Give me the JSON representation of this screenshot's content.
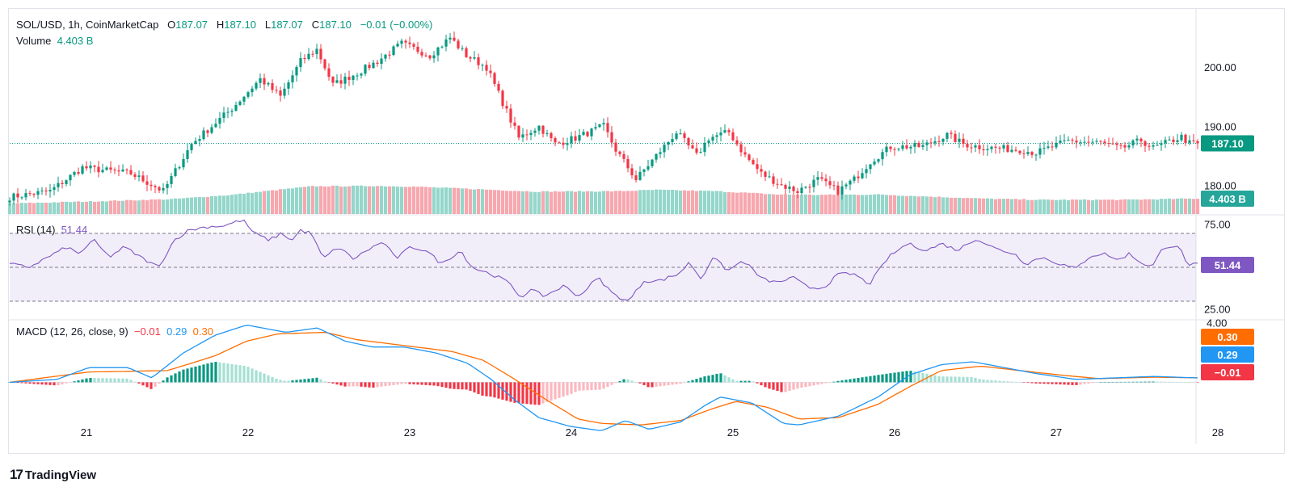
{
  "header": {
    "symbol": "SOL/USD, 1h, CoinMarketCap",
    "o_label": "O",
    "o": "187.07",
    "h_label": "H",
    "h": "187.10",
    "l_label": "L",
    "l": "187.07",
    "c_label": "C",
    "c": "187.10",
    "change": "−0.01 (−0.00%)",
    "volume_label": "Volume",
    "volume": "4.403 B"
  },
  "rsi_legend": {
    "label": "RSI (14)",
    "value": "51.44"
  },
  "macd_legend": {
    "label": "MACD (12, 26, close, 9)",
    "hist": "−0.01",
    "macd": "0.29",
    "signal": "0.30"
  },
  "badges": {
    "price": "187.10",
    "volume": "4.403 B",
    "rsi": "51.44",
    "signal": "0.30",
    "macd": "0.29",
    "hist": "−0.01"
  },
  "brand": "TradingView",
  "colors": {
    "up": "#089981",
    "down": "#f23645",
    "up_vol": "#94d6ca",
    "down_vol": "#f7a7ae",
    "rsi": "#7e57c2",
    "macd": "#2196f3",
    "signal": "#ff6d00"
  },
  "chart_data": {
    "type": "candlestick",
    "price_axis": {
      "ticks": [
        "200.00",
        "190.00",
        "180.00"
      ],
      "values": [
        200,
        190,
        180
      ],
      "range": [
        176.5,
        208.5
      ]
    },
    "rsi_axis": {
      "ticks": [
        "75.00",
        "25.00"
      ],
      "values": [
        75,
        25
      ],
      "band": [
        30,
        70
      ],
      "mid": 50,
      "range": [
        20,
        80
      ]
    },
    "macd_axis": {
      "ticks": [
        "4.00"
      ],
      "values": [
        4
      ],
      "range": [
        -4.1,
        4.2
      ]
    },
    "x_ticks": [
      "21",
      "22",
      "23",
      "24",
      "25",
      "26",
      "27",
      "28"
    ],
    "x_tick_hours": [
      19,
      59,
      99,
      139,
      179,
      219,
      259,
      299
    ],
    "close_keyframes": [
      [
        0,
        178
      ],
      [
        10,
        179
      ],
      [
        18,
        183
      ],
      [
        30,
        182
      ],
      [
        38,
        179
      ],
      [
        45,
        187
      ],
      [
        55,
        193
      ],
      [
        62,
        198
      ],
      [
        67,
        195
      ],
      [
        72,
        201
      ],
      [
        76,
        203
      ],
      [
        80,
        197
      ],
      [
        86,
        199
      ],
      [
        91,
        201
      ],
      [
        97,
        204
      ],
      [
        104,
        202
      ],
      [
        109,
        205
      ],
      [
        113,
        202
      ],
      [
        118,
        200
      ],
      [
        122,
        194
      ],
      [
        126,
        188
      ],
      [
        131,
        190
      ],
      [
        135,
        187
      ],
      [
        140,
        188
      ],
      [
        147,
        190
      ],
      [
        150,
        186
      ],
      [
        155,
        181
      ],
      [
        160,
        185
      ],
      [
        165,
        189
      ],
      [
        170,
        185
      ],
      [
        173,
        188
      ],
      [
        178,
        189
      ],
      [
        182,
        185
      ],
      [
        186,
        182
      ],
      [
        191,
        180
      ],
      [
        195,
        179
      ],
      [
        200,
        181
      ],
      [
        205,
        179
      ],
      [
        209,
        181
      ],
      [
        213,
        184
      ],
      [
        218,
        186.5
      ],
      [
        226,
        186.6
      ],
      [
        232,
        188.5
      ],
      [
        236,
        187
      ],
      [
        240,
        186.5
      ],
      [
        250,
        186
      ],
      [
        254,
        185.5
      ],
      [
        262,
        187.5
      ],
      [
        270,
        187.2
      ],
      [
        275,
        186.2
      ],
      [
        280,
        187.6
      ],
      [
        283,
        186.3
      ],
      [
        287,
        187.4
      ],
      [
        290,
        188.2
      ],
      [
        292,
        187.1
      ],
      [
        294,
        187.1
      ]
    ],
    "volume_keyframes": [
      [
        0,
        3.2
      ],
      [
        20,
        3.8
      ],
      [
        40,
        4.5
      ],
      [
        55,
        5.8
      ],
      [
        64,
        7
      ],
      [
        75,
        8.4
      ],
      [
        90,
        8.5
      ],
      [
        100,
        8.3
      ],
      [
        110,
        7.8
      ],
      [
        120,
        7.3
      ],
      [
        130,
        6.8
      ],
      [
        150,
        6.9
      ],
      [
        160,
        7.3
      ],
      [
        175,
        6.9
      ],
      [
        190,
        5.9
      ],
      [
        200,
        5.8
      ],
      [
        215,
        5.9
      ],
      [
        225,
        5.4
      ],
      [
        240,
        4.7
      ],
      [
        255,
        4.3
      ],
      [
        275,
        4.3
      ],
      [
        294,
        4.7
      ]
    ],
    "volume_scale_max": 10,
    "rsi_keyframes": [
      [
        0,
        52
      ],
      [
        5,
        50
      ],
      [
        10,
        56
      ],
      [
        15,
        62
      ],
      [
        18,
        58
      ],
      [
        22,
        66
      ],
      [
        26,
        56
      ],
      [
        30,
        62
      ],
      [
        35,
        55
      ],
      [
        39,
        50
      ],
      [
        43,
        66
      ],
      [
        47,
        72
      ],
      [
        52,
        74
      ],
      [
        56,
        74.5
      ],
      [
        61,
        78
      ],
      [
        64,
        70
      ],
      [
        68,
        66
      ],
      [
        71,
        70
      ],
      [
        74,
        66
      ],
      [
        76,
        72
      ],
      [
        79,
        70
      ],
      [
        82,
        55
      ],
      [
        86,
        62
      ],
      [
        90,
        55
      ],
      [
        95,
        62
      ],
      [
        98,
        65
      ],
      [
        101,
        55
      ],
      [
        105,
        62
      ],
      [
        109,
        60
      ],
      [
        113,
        52
      ],
      [
        118,
        60
      ],
      [
        121,
        50
      ],
      [
        126,
        46
      ],
      [
        130,
        42
      ],
      [
        134,
        32
      ],
      [
        136,
        37
      ],
      [
        140,
        33
      ],
      [
        145,
        39
      ],
      [
        149,
        33
      ],
      [
        154,
        44
      ],
      [
        158,
        34
      ],
      [
        162,
        30
      ],
      [
        166,
        42
      ],
      [
        170,
        42
      ],
      [
        175,
        46
      ],
      [
        178,
        53
      ],
      [
        181,
        43
      ],
      [
        184,
        56
      ],
      [
        188,
        48
      ],
      [
        192,
        54
      ],
      [
        197,
        43
      ],
      [
        201,
        41
      ],
      [
        205,
        44
      ],
      [
        209,
        38
      ],
      [
        213,
        38
      ],
      [
        217,
        46
      ],
      [
        221,
        46
      ],
      [
        225,
        40
      ],
      [
        230,
        56
      ],
      [
        235,
        64
      ],
      [
        240,
        60
      ],
      [
        244,
        64
      ],
      [
        248,
        60
      ],
      [
        253,
        67
      ],
      [
        258,
        61
      ],
      [
        263,
        58
      ],
      [
        266,
        52
      ],
      [
        270,
        56
      ],
      [
        275,
        52
      ],
      [
        279,
        49
      ],
      [
        283,
        57
      ],
      [
        287,
        58
      ],
      [
        290,
        54
      ],
      [
        293,
        58
      ],
      [
        296,
        53
      ],
      [
        299,
        50
      ],
      [
        302,
        62
      ],
      [
        306,
        63
      ],
      [
        308,
        52
      ],
      [
        312,
        51.4
      ]
    ],
    "macd_keyframes": [
      [
        0,
        0
      ],
      [
        12,
        0.2
      ],
      [
        20,
        1.0
      ],
      [
        30,
        1.0
      ],
      [
        36,
        0.3
      ],
      [
        44,
        2.0
      ],
      [
        52,
        3.2
      ],
      [
        60,
        3.9
      ],
      [
        70,
        3.4
      ],
      [
        78,
        3.7
      ],
      [
        85,
        2.8
      ],
      [
        92,
        2.4
      ],
      [
        100,
        2.4
      ],
      [
        108,
        2.0
      ],
      [
        116,
        1.3
      ],
      [
        122,
        0.2
      ],
      [
        128,
        -1.2
      ],
      [
        134,
        -2.4
      ],
      [
        142,
        -3.0
      ],
      [
        150,
        -3.3
      ],
      [
        156,
        -2.6
      ],
      [
        162,
        -3.2
      ],
      [
        170,
        -2.7
      ],
      [
        176,
        -1.6
      ],
      [
        180,
        -1.0
      ],
      [
        188,
        -1.4
      ],
      [
        196,
        -2.8
      ],
      [
        200,
        -2.9
      ],
      [
        210,
        -2.3
      ],
      [
        220,
        -1.0
      ],
      [
        228,
        0.5
      ],
      [
        236,
        1.2
      ],
      [
        244,
        1.4
      ],
      [
        252,
        1.0
      ],
      [
        260,
        0.6
      ],
      [
        270,
        0.2
      ],
      [
        280,
        0.3
      ],
      [
        290,
        0.4
      ],
      [
        302,
        0.29
      ]
    ],
    "signal_keyframes": [
      [
        0,
        0
      ],
      [
        20,
        0.7
      ],
      [
        40,
        0.8
      ],
      [
        52,
        1.8
      ],
      [
        60,
        2.8
      ],
      [
        68,
        3.3
      ],
      [
        80,
        3.4
      ],
      [
        88,
        2.9
      ],
      [
        100,
        2.5
      ],
      [
        112,
        2.1
      ],
      [
        120,
        1.5
      ],
      [
        128,
        0.2
      ],
      [
        136,
        -1.2
      ],
      [
        144,
        -2.5
      ],
      [
        150,
        -2.8
      ],
      [
        160,
        -2.9
      ],
      [
        170,
        -2.6
      ],
      [
        178,
        -1.8
      ],
      [
        184,
        -1.3
      ],
      [
        192,
        -1.7
      ],
      [
        200,
        -2.5
      ],
      [
        210,
        -2.4
      ],
      [
        220,
        -1.5
      ],
      [
        228,
        -0.3
      ],
      [
        236,
        0.8
      ],
      [
        246,
        1.1
      ],
      [
        256,
        0.8
      ],
      [
        266,
        0.5
      ],
      [
        276,
        0.25
      ],
      [
        290,
        0.35
      ],
      [
        302,
        0.3
      ]
    ]
  }
}
